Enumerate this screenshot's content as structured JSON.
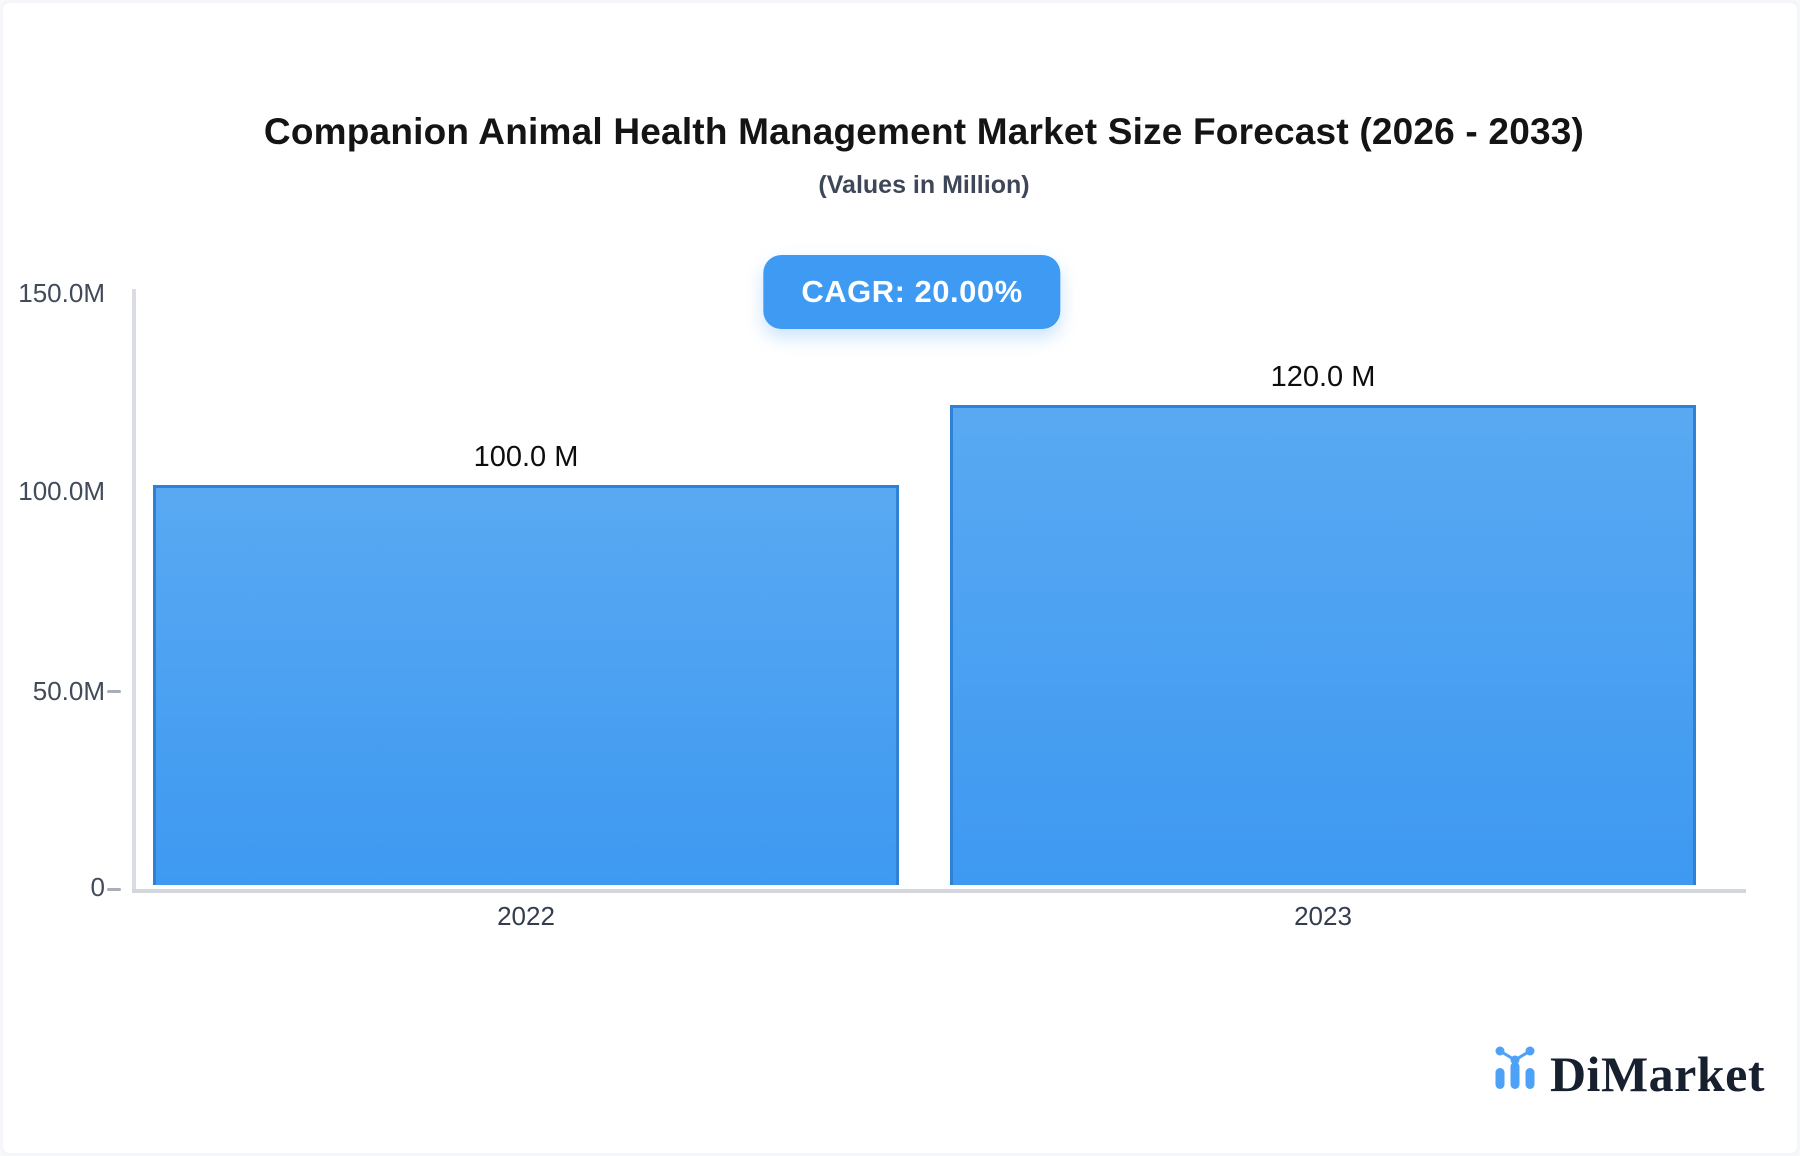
{
  "header": {
    "title": "Companion Animal Health Management Market Size Forecast (2026 - 2033)",
    "subtitle": "(Values in Million)",
    "cagr_label": "CAGR: 20.00%"
  },
  "chart_data": {
    "type": "bar",
    "title": "Companion Animal Health Management Market Size Forecast (2026 - 2033)",
    "subtitle": "(Values in Million)",
    "unit": "Million",
    "cagr": "20.00%",
    "categories": [
      "2022",
      "2023"
    ],
    "values": [
      100.0,
      120.0
    ],
    "value_labels": [
      "100.0 M",
      "120.0 M"
    ],
    "ylim": [
      0,
      150
    ],
    "y_ticks": [
      {
        "value": 150,
        "label": "150.0M"
      },
      {
        "value": 100,
        "label": "100.0M"
      },
      {
        "value": 50,
        "label": "50.0M"
      },
      {
        "value": 0,
        "label": "0"
      }
    ],
    "grid": false,
    "legend_position": "none",
    "bar_colors": {
      "top": "#59a9f2",
      "bottom": "#3e99f1",
      "border": "#2f81d6"
    }
  },
  "branding": {
    "logo_text": "DiMarket",
    "logo_icon": "mini-bar-chart-icon",
    "logo_icon_color": "#4da1f7",
    "logo_text_color": "#17202e"
  },
  "colors": {
    "badge_bg": "#3e9af3",
    "badge_text": "#ffffff",
    "axis_line": "#d9dce2",
    "tick_dash": "#a9afb8",
    "axis_label_color": "#414b5a",
    "category_label_color": "#333d4f",
    "value_label_color": "#0d0d0d",
    "background": "#ffffff"
  }
}
